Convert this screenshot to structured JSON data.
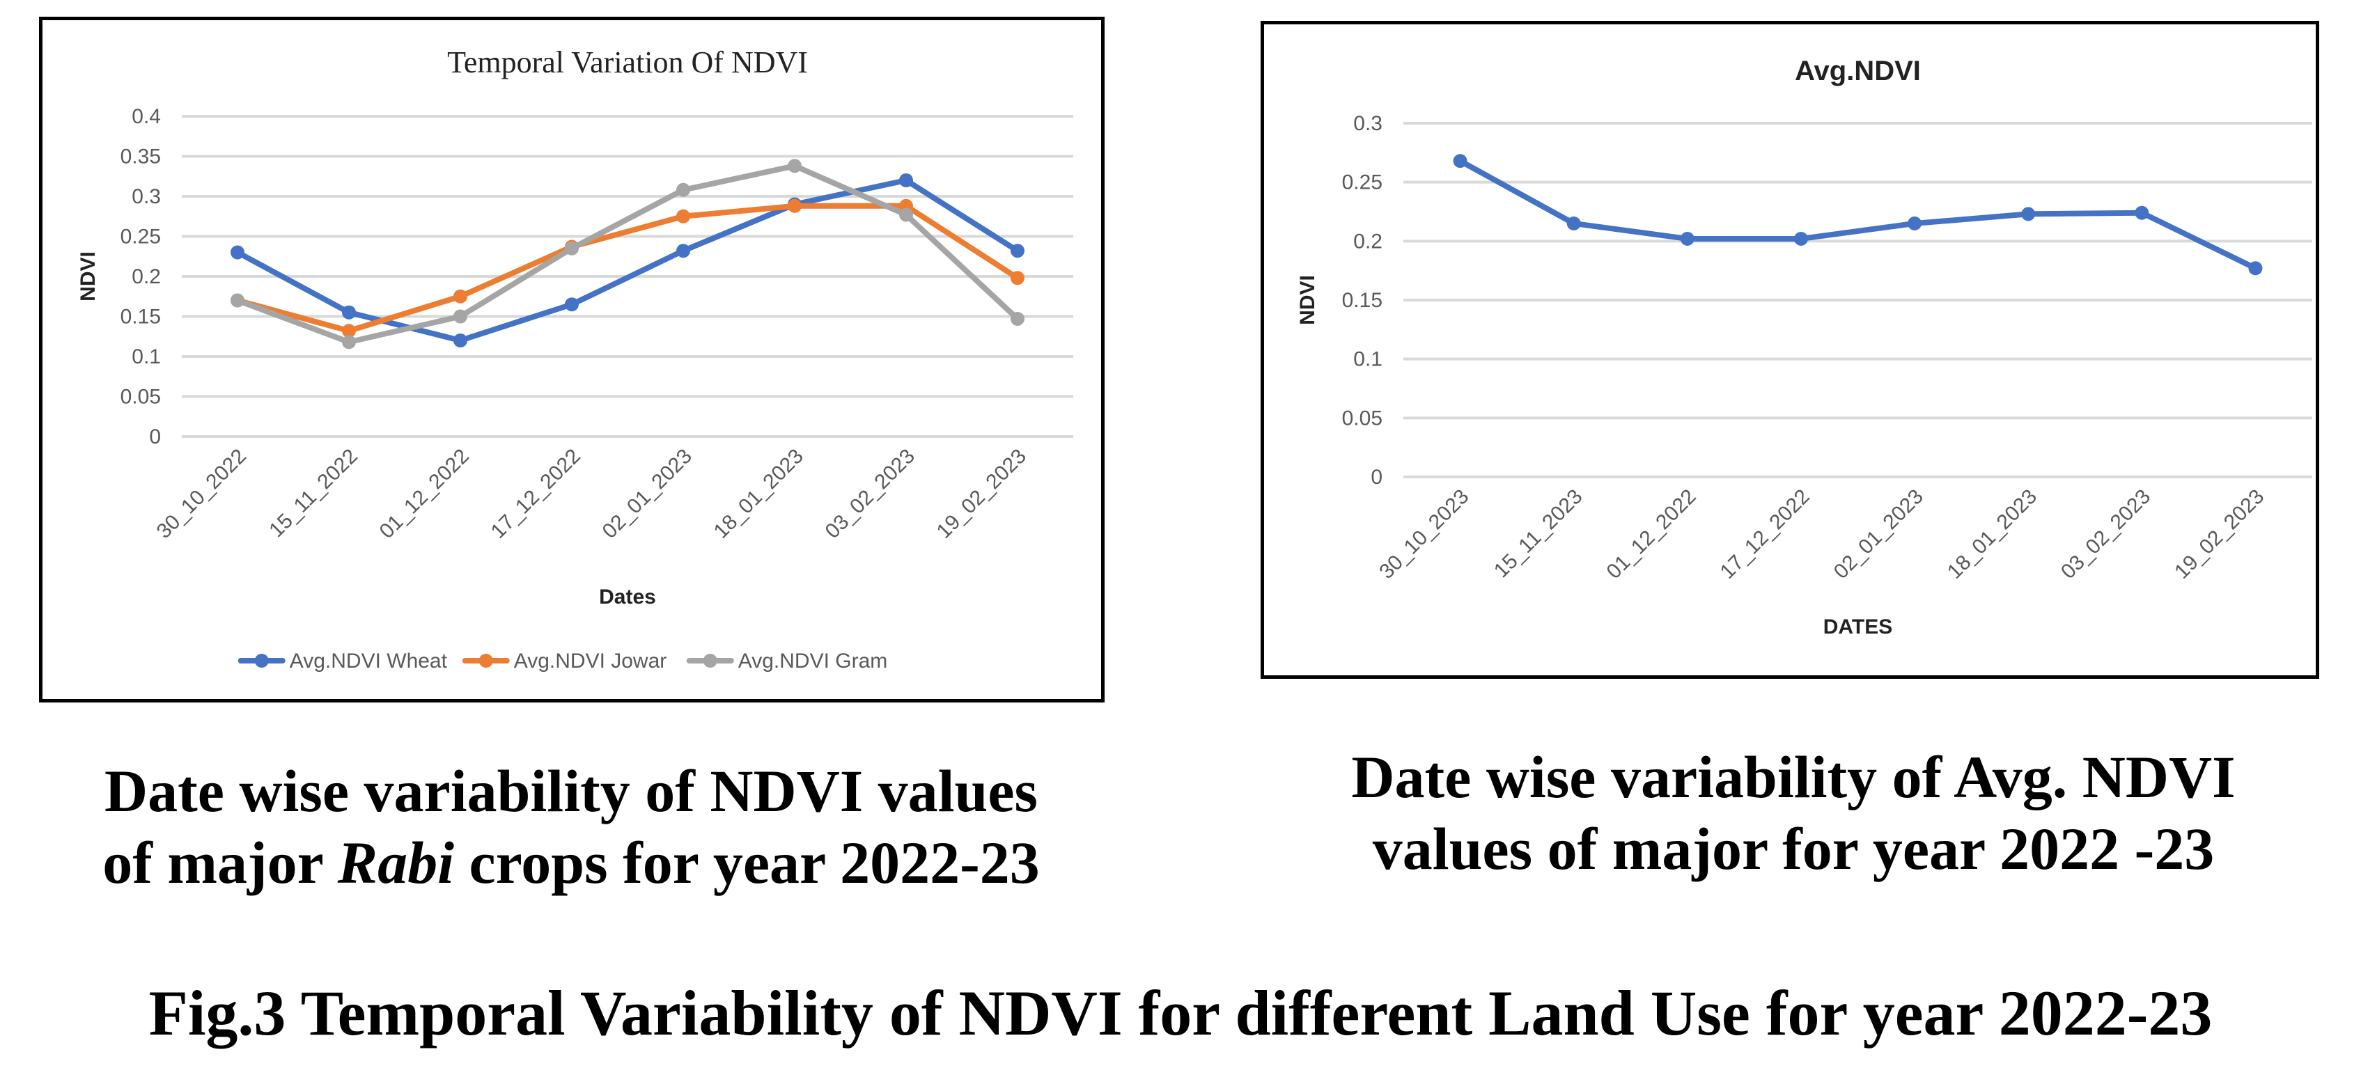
{
  "chart_data": [
    {
      "type": "line",
      "title": "Temporal Variation Of NDVI",
      "xlabel": "Dates",
      "ylabel": "NDVI",
      "categories": [
        "30_10_2022",
        "15_11_2022",
        "01_12_2022",
        "17_12_2022",
        "02_01_2023",
        "18_01_2023",
        "03_02_2023",
        "19_02_2023"
      ],
      "ylim": [
        0,
        0.4
      ],
      "yticks": [
        "0",
        "0.05",
        "0.1",
        "0.15",
        "0.2",
        "0.25",
        "0.3",
        "0.35",
        "0.4"
      ],
      "grid": true,
      "legend": "bottom",
      "series": [
        {
          "name": "Avg.NDVI Wheat",
          "color": "#4472C4",
          "values": [
            0.23,
            0.155,
            0.12,
            0.165,
            0.232,
            0.29,
            0.32,
            0.232
          ]
        },
        {
          "name": "Avg.NDVI Jowar",
          "color": "#ED7D31",
          "values": [
            0.17,
            0.132,
            0.175,
            0.237,
            0.275,
            0.288,
            0.288,
            0.198
          ]
        },
        {
          "name": "Avg.NDVI Gram",
          "color": "#A5A5A5",
          "values": [
            0.17,
            0.118,
            0.15,
            0.235,
            0.308,
            0.338,
            0.277,
            0.147
          ]
        }
      ]
    },
    {
      "type": "line",
      "title": "Avg.NDVI",
      "xlabel": "DATES",
      "ylabel": "NDVI",
      "categories": [
        "30_10_2023",
        "15_11_2023",
        "01_12_2022",
        "17_12_2022",
        "02_01_2023",
        "18_01_2023",
        "03_02_2023",
        "19_02_2023"
      ],
      "ylim": [
        0,
        0.3
      ],
      "yticks": [
        "0",
        "0.05",
        "0.1",
        "0.15",
        "0.2",
        "0.25",
        "0.3"
      ],
      "grid": true,
      "legend": "none",
      "series": [
        {
          "name": "Avg.NDVI",
          "color": "#4472C4",
          "values": [
            0.268,
            0.215,
            0.202,
            0.202,
            0.215,
            0.223,
            0.224,
            0.177
          ]
        }
      ]
    }
  ],
  "captions": {
    "left_line1": "Date wise variability of NDVI values",
    "left_line2_pre": "of major ",
    "left_line2_italic": "Rabi",
    "left_line2_post": " crops for year 2022-23",
    "right_line1": "Date wise variability of Avg. NDVI",
    "right_line2": "values of major for year 2022 -23",
    "figure": "Fig.3 Temporal Variability of NDVI for different Land Use   for year 2022-23"
  }
}
